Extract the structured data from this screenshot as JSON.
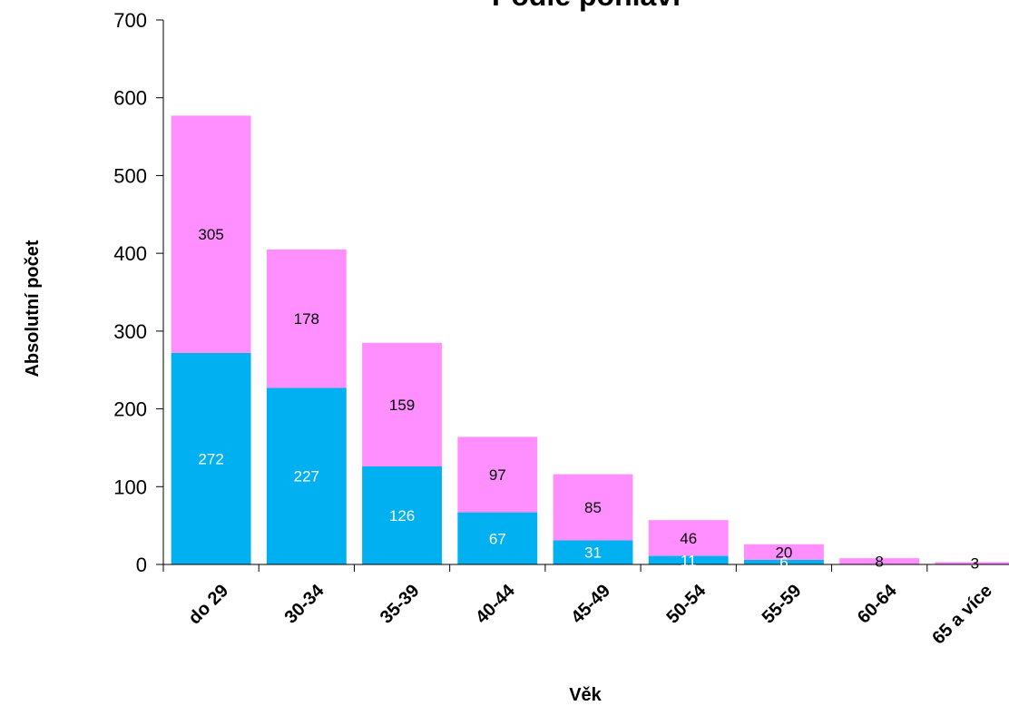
{
  "chart_data": {
    "type": "bar",
    "stacked": true,
    "title": "Podle pohlaví",
    "xlabel": "Věk",
    "ylabel": "Absolutní počet",
    "categories": [
      "do 29",
      "30-34",
      "35-39",
      "40-44",
      "45-49",
      "50-54",
      "55-59",
      "60-64",
      "65 a více"
    ],
    "ylim": [
      0,
      700
    ],
    "yticks": [
      0,
      100,
      200,
      300,
      400,
      500,
      600,
      700
    ],
    "grid": false,
    "legend": "none",
    "series": [
      {
        "values": [
          272,
          227,
          126,
          67,
          31,
          11,
          6,
          0,
          0
        ],
        "labels": [
          "272",
          "227",
          "126",
          "67",
          "31",
          "11",
          "6",
          "",
          ""
        ],
        "color": "#00b0f0",
        "label_color": "#ffffff"
      },
      {
        "values": [
          305,
          178,
          159,
          97,
          85,
          46,
          20,
          8,
          3
        ],
        "labels": [
          "305",
          "178",
          "159",
          "97",
          "85",
          "46",
          "20",
          "8",
          "3"
        ],
        "color": "#ff8fff",
        "label_color": "#000000"
      }
    ]
  }
}
